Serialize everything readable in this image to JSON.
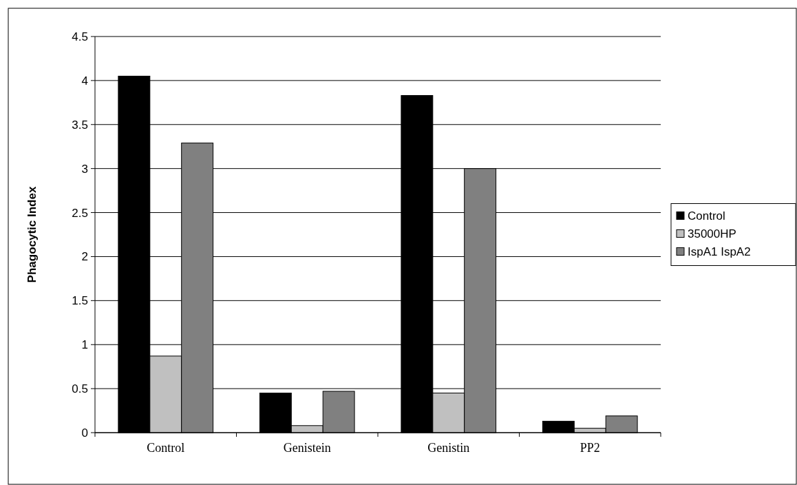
{
  "chart_data": {
    "type": "bar",
    "ylabel": "Phagocytic Index",
    "categories": [
      "Control",
      "Genistein",
      "Genistin",
      "PP2"
    ],
    "series": [
      {
        "name": "Control",
        "color": "#000000",
        "values": [
          4.05,
          0.45,
          3.83,
          0.13
        ]
      },
      {
        "name": "35000HP",
        "color": "#c0c0c0",
        "values": [
          0.87,
          0.08,
          0.45,
          0.05
        ]
      },
      {
        "name": "IspA1 IspA2",
        "color": "#808080",
        "values": [
          3.29,
          0.47,
          3.0,
          0.19
        ]
      }
    ],
    "ylim": [
      0,
      4.5
    ],
    "yticks": [
      0,
      0.5,
      1,
      1.5,
      2,
      2.5,
      3,
      3.5,
      4,
      4.5
    ],
    "grid": "y",
    "legend": "right"
  }
}
